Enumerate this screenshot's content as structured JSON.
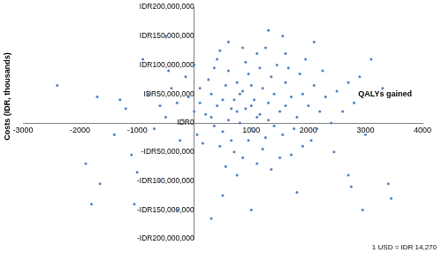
{
  "chart_data": {
    "type": "scatter",
    "x_label": "QALYs gained",
    "y_label": "Costs (IDR, thousands)",
    "annotation": "1 USD = IDR 14,270",
    "color": "#4f81bd",
    "marker": "circle",
    "grid": false,
    "xlim": [
      -3000,
      4000
    ],
    "xticks": [
      -3000,
      -2000,
      -1000,
      1000,
      2000,
      3000,
      4000
    ],
    "ylim": [
      -200000000,
      200000000
    ],
    "yticks": [
      {
        "value": -200000000,
        "label": "-IDR200,000,000"
      },
      {
        "value": -150000000,
        "label": "-IDR150,000,000"
      },
      {
        "value": -100000000,
        "label": "-IDR100,000,000"
      },
      {
        "value": -50000000,
        "label": "-IDR50,000,000"
      },
      {
        "value": 0,
        "label": "IDR0"
      },
      {
        "value": 50000000,
        "label": "IDR50,000,000"
      },
      {
        "value": 100000000,
        "label": "IDR100,000,000"
      },
      {
        "value": 150000000,
        "label": "IDR150,000,000"
      },
      {
        "value": 200000000,
        "label": "IDR200,000,000"
      }
    ],
    "x": [
      900,
      700,
      1100,
      850,
      600,
      1300,
      400,
      1000,
      750,
      1200,
      500,
      1500,
      300,
      1400,
      950,
      650,
      1700,
      200,
      1050,
      800,
      1600,
      100,
      1250,
      550,
      1800,
      0,
      1150,
      450,
      1900,
      -100,
      1350,
      700,
      2000,
      -200,
      900,
      1000,
      350,
      2100,
      1550,
      250,
      1450,
      -300,
      850,
      2200,
      600,
      1750,
      50,
      1100,
      2300,
      -400,
      1650,
      400,
      1200,
      2400,
      150,
      1850,
      750,
      950,
      -500,
      2500,
      1300,
      500,
      1000,
      800,
      1150,
      650,
      1400,
      300,
      1600,
      1050,
      2050,
      -150,
      1950,
      550,
      1250,
      2600,
      -600,
      1700,
      350,
      2250,
      100,
      1500,
      850,
      -250,
      2700,
      1350,
      450,
      2150,
      -700,
      1900,
      750,
      2800,
      0,
      1600,
      1100,
      2450,
      -450,
      2900,
      600,
      -800,
      -2400,
      -1700,
      -1650,
      -1800,
      -1300,
      -1200,
      -1100,
      -1000,
      -1900,
      -900,
      -500,
      1300,
      1550,
      2700,
      3400,
      3450,
      2950,
      -300,
      300,
      3100,
      3300,
      2750,
      1000,
      -1050,
      3000,
      1800,
      -600,
      2100,
      500,
      -1400
    ],
    "values": [
      25000000,
      40000000,
      10000000,
      55000000,
      5000000,
      35000000,
      30000000,
      -10000000,
      70000000,
      60000000,
      -15000000,
      20000000,
      50000000,
      -5000000,
      85000000,
      -30000000,
      45000000,
      15000000,
      40000000,
      0,
      70000000,
      35000000,
      -25000000,
      65000000,
      10000000,
      20000000,
      95000000,
      -40000000,
      50000000,
      45000000,
      80000000,
      -50000000,
      30000000,
      5000000,
      105000000,
      65000000,
      -5000000,
      65000000,
      -20000000,
      75000000,
      100000000,
      35000000,
      -60000000,
      20000000,
      90000000,
      -10000000,
      -20000000,
      120000000,
      45000000,
      60000000,
      95000000,
      110000000,
      -45000000,
      0,
      -35000000,
      85000000,
      20000000,
      -30000000,
      10000000,
      55000000,
      5000000,
      40000000,
      30000000,
      50000000,
      15000000,
      25000000,
      50000000,
      10000000,
      30000000,
      -15000000,
      -30000000,
      80000000,
      110000000,
      -75000000,
      130000000,
      20000000,
      30000000,
      -55000000,
      95000000,
      90000000,
      60000000,
      -60000000,
      130000000,
      -30000000,
      70000000,
      -80000000,
      125000000,
      -10000000,
      -10000000,
      -40000000,
      -90000000,
      35000000,
      100000000,
      120000000,
      -70000000,
      -50000000,
      90000000,
      80000000,
      140000000,
      50000000,
      65000000,
      45000000,
      -105000000,
      -140000000,
      40000000,
      25000000,
      -55000000,
      -85000000,
      -70000000,
      110000000,
      150000000,
      160000000,
      150000000,
      -90000000,
      -105000000,
      -130000000,
      -150000000,
      -150000000,
      -165000000,
      110000000,
      60000000,
      -110000000,
      -150000000,
      -140000000,
      -20000000,
      -120000000,
      -100000000,
      140000000,
      -125000000,
      -20000000
    ]
  }
}
